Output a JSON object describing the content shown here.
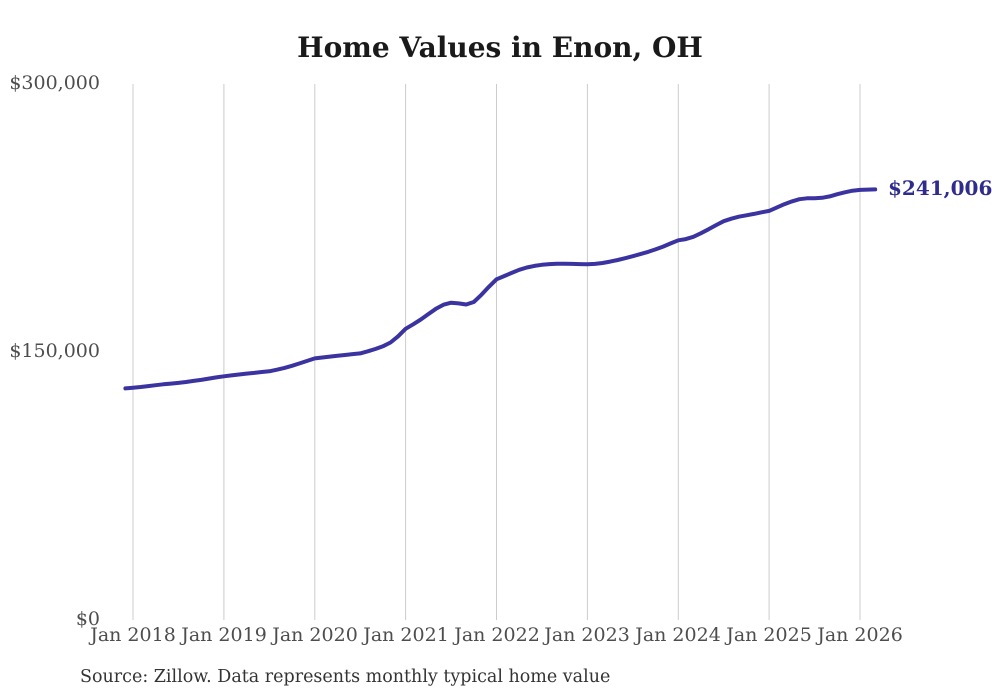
{
  "chart": {
    "title": "Home Values in Enon, OH",
    "end_label": "$241,006",
    "source": "Source: Zillow. Data represents monthly typical home value",
    "colors": {
      "line": "#3b34a0",
      "end_label": "#2f2c8e",
      "gridline": "#cccccc",
      "axis_text": "#4d4d4d",
      "title_text": "#1a1a1a",
      "source_text": "#333333",
      "background": "#ffffff"
    }
  },
  "chart_data": {
    "type": "line",
    "title": "Home Values in Enon, OH",
    "series_name": "Typical home value",
    "unit": "USD",
    "x_start": "Dec 2017",
    "x_end": "Mar 2026",
    "x_interval": "monthly",
    "x_tick_labels": [
      "Jan 2018",
      "Jan 2019",
      "Jan 2020",
      "Jan 2021",
      "Jan 2022",
      "Jan 2023",
      "Jan 2024",
      "Jan 2025",
      "Jan 2026"
    ],
    "x_tick_month_index": [
      1,
      13,
      25,
      37,
      49,
      61,
      73,
      85,
      97
    ],
    "y_ticks": [
      {
        "value": 0,
        "label": "$0"
      },
      {
        "value": 150000,
        "label": "$150,000"
      },
      {
        "value": 300000,
        "label": "$300,000"
      }
    ],
    "ylim": [
      0,
      300000
    ],
    "grid": "vertical-only",
    "legend": "none",
    "end_value": 241006,
    "values": [
      129600,
      130000,
      130400,
      130900,
      131400,
      131900,
      132300,
      132700,
      133200,
      133800,
      134400,
      135100,
      135800,
      136400,
      136900,
      137400,
      137900,
      138300,
      138800,
      139200,
      140100,
      141100,
      142300,
      143600,
      145000,
      146400,
      146900,
      147400,
      147900,
      148300,
      148800,
      149200,
      150400,
      151700,
      153200,
      155300,
      158800,
      163000,
      165500,
      168200,
      171200,
      174200,
      176500,
      177600,
      177200,
      176600,
      178000,
      182000,
      186500,
      190700,
      192500,
      194300,
      196000,
      197300,
      198200,
      198800,
      199200,
      199400,
      199400,
      199300,
      199200,
      199100,
      199300,
      199800,
      200600,
      201500,
      202500,
      203600,
      204800,
      206000,
      207400,
      209000,
      210800,
      212500,
      213200,
      214500,
      216500,
      218700,
      221000,
      223200,
      224600,
      225700,
      226500,
      227300,
      228200,
      229000,
      230800,
      232700,
      234300,
      235500,
      236000,
      236100,
      236300,
      237100,
      238300,
      239400,
      240300,
      240700,
      240900,
      241006
    ]
  }
}
